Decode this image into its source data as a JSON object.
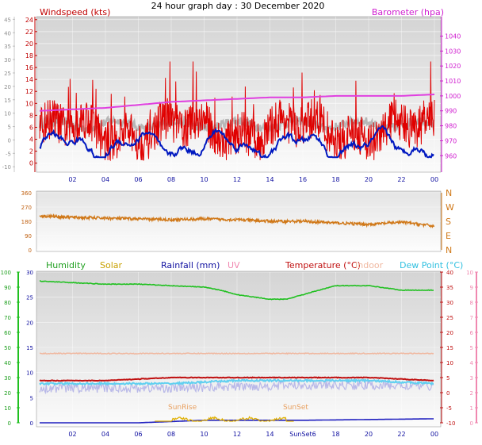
{
  "title": "24 hour graph day : 30 December 2020",
  "colors": {
    "wind": "#e00000",
    "wind_avg": "#0018c0",
    "baro": "#e040e0",
    "wind_dir": "#d07818",
    "humidity": "#20c020",
    "solar": "#e0b000",
    "rain": "#2020c0",
    "uv": "#f088b0",
    "temp": "#c01010",
    "indoor": "#f0b8a0",
    "dew": "#60d0f0",
    "gray": "#b0b0b0"
  },
  "x_ticks": [
    "02",
    "04",
    "06",
    "08",
    "10",
    "12",
    "14",
    "16",
    "18",
    "20",
    "22",
    "00"
  ],
  "panel_wind": {
    "left_label": "Windspeed (kts)",
    "right_label": "Barometer (hpa)",
    "left_ticks": [
      "24",
      "22",
      "20",
      "18",
      "16",
      "14",
      "12",
      "10",
      "8",
      "6",
      "4",
      "2",
      "0"
    ],
    "far_left_ticks": [
      "45",
      "40",
      "35",
      "30",
      "25",
      "20",
      "15",
      "10",
      "5",
      "0",
      "-5",
      "-10"
    ],
    "right_ticks": [
      "1040",
      "1030",
      "1020",
      "1010",
      "1000",
      "990",
      "980",
      "970",
      "960"
    ]
  },
  "panel_dir": {
    "left_ticks": [
      "360",
      "270",
      "180",
      "90",
      "0"
    ],
    "right_ticks": [
      "N",
      "W",
      "S",
      "E",
      "N"
    ]
  },
  "panel_main": {
    "labels": {
      "humidity": "Humidity",
      "solar": "Solar",
      "rain": "Rainfall (mm)",
      "uv": "UV",
      "temp": "Temperature (°C)",
      "indoor": "Indoor",
      "dew": "Dew Point (°C)"
    },
    "humidity_ticks": [
      "100",
      "90",
      "80",
      "70",
      "60",
      "50",
      "40",
      "30",
      "20",
      "10",
      "0"
    ],
    "rain_ticks": [
      "30",
      "25",
      "20",
      "15",
      "10",
      "5",
      "0"
    ],
    "temp_ticks": [
      "40",
      "35",
      "30",
      "25",
      "20",
      "15",
      "10",
      "5",
      "0",
      "-5",
      "-10"
    ],
    "uv_ticks": [
      "10",
      "9",
      "8",
      "7",
      "6",
      "5",
      "4",
      "3",
      "2",
      "1",
      "0"
    ],
    "sunrise": "SunRise",
    "sunset": "SunSet",
    "x_ticks": [
      "02",
      "04",
      "06",
      "08",
      "10",
      "12",
      "14",
      "SunSet6",
      "18",
      "20",
      "22",
      "00"
    ]
  },
  "chart_data": [
    {
      "type": "line",
      "x_range_hours": [
        0,
        24
      ],
      "y_left": "Windspeed (kts)",
      "y_right": "Barometer (hpa)",
      "ylim_left": [
        0,
        25
      ],
      "ylim_right": [
        955,
        1045
      ],
      "series": [
        {
          "name": "Windspeed (kts)",
          "approx_range": [
            1,
            17
          ]
        },
        {
          "name": "Barometer (hpa)",
          "x": [
            0,
            2,
            4,
            6,
            8,
            10,
            12,
            14,
            16,
            18,
            20,
            22,
            24
          ],
          "values": [
            990,
            991,
            992,
            994,
            996,
            997,
            998,
            999,
            999,
            1000,
            1000,
            1000,
            1001
          ]
        }
      ]
    },
    {
      "type": "line",
      "x_range_hours": [
        0,
        24
      ],
      "ylim": [
        0,
        360
      ],
      "series": [
        {
          "x": [
            0,
            2,
            4,
            6,
            8,
            10,
            12,
            14,
            16,
            18,
            20,
            22,
            24
          ],
          "values": [
            215,
            205,
            200,
            195,
            190,
            195,
            190,
            180,
            180,
            170,
            160,
            175,
            150
          ]
        }
      ]
    },
    {
      "type": "line",
      "x_range_hours": [
        0,
        24
      ],
      "series": [
        {
          "name": "Humidity",
          "ylim": [
            0,
            100
          ],
          "x": [
            0,
            2,
            4,
            6,
            8,
            10,
            11,
            12,
            14,
            15,
            16,
            18,
            20,
            22,
            24
          ],
          "values": [
            94,
            93,
            92,
            92,
            91,
            90,
            88,
            85,
            82,
            82,
            85,
            91,
            91,
            88,
            88
          ]
        },
        {
          "name": "Temperature (°C)",
          "ylim": [
            -10,
            40
          ],
          "x": [
            0,
            4,
            8,
            12,
            16,
            20,
            24
          ],
          "values": [
            4,
            4,
            5,
            5,
            5,
            5,
            4
          ]
        },
        {
          "name": "Indoor",
          "ylim": [
            -10,
            40
          ],
          "x": [
            0,
            8,
            16,
            24
          ],
          "values": [
            13,
            13,
            13,
            13
          ]
        },
        {
          "name": "Dew Point (°C)",
          "ylim": [
            -10,
            40
          ],
          "x": [
            0,
            4,
            8,
            12,
            16,
            20,
            24
          ],
          "values": [
            3,
            3,
            3,
            4,
            4,
            4,
            3
          ]
        },
        {
          "name": "Rainfall (mm)",
          "ylim": [
            0,
            30
          ],
          "x": [
            0,
            6,
            10,
            16,
            24
          ],
          "values": [
            0,
            0,
            0.5,
            0.5,
            0.8
          ]
        },
        {
          "name": "Solar",
          "approx_range": [
            0,
            1.5
          ]
        }
      ]
    }
  ]
}
